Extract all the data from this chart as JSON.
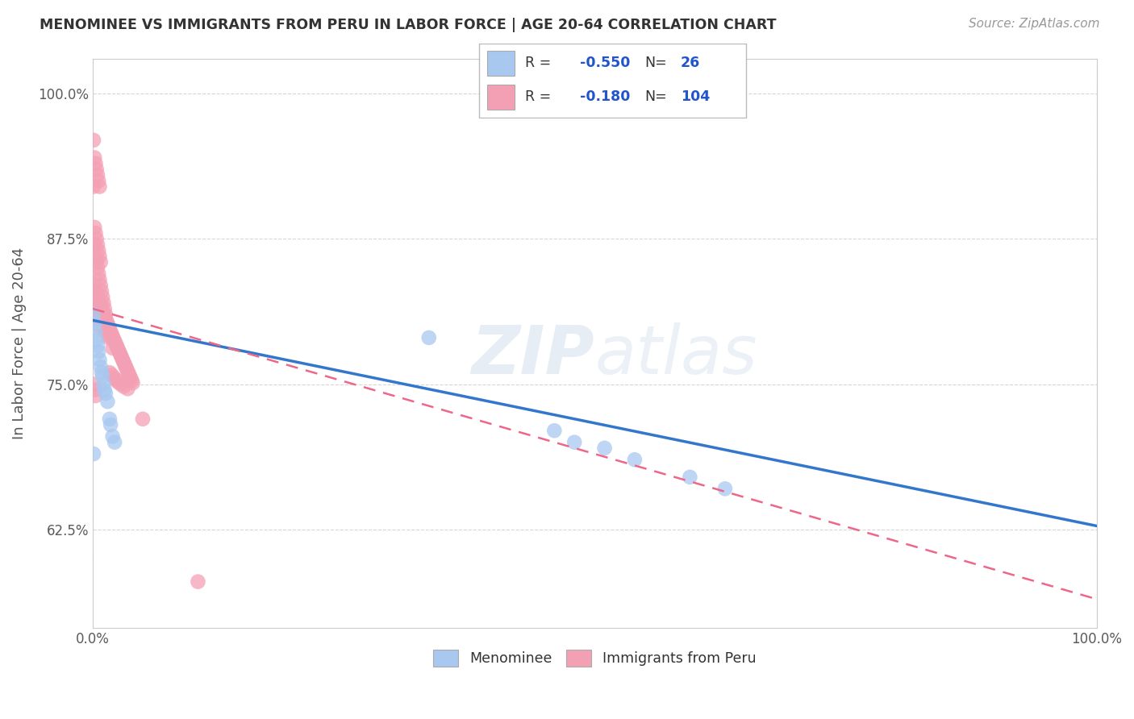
{
  "title": "MENOMINEE VS IMMIGRANTS FROM PERU IN LABOR FORCE | AGE 20-64 CORRELATION CHART",
  "source": "Source: ZipAtlas.com",
  "ylabel": "In Labor Force | Age 20-64",
  "xlim": [
    0.0,
    1.0
  ],
  "ylim": [
    0.54,
    1.03
  ],
  "yticks": [
    0.625,
    0.75,
    0.875,
    1.0
  ],
  "ytick_labels": [
    "62.5%",
    "75.0%",
    "87.5%",
    "100.0%"
  ],
  "menominee_R": -0.55,
  "menominee_N": 26,
  "peru_R": -0.18,
  "peru_N": 104,
  "menominee_color": "#a8c8f0",
  "peru_color": "#f4a0b4",
  "menominee_line_color": "#3377cc",
  "peru_line_color": "#ee6688",
  "legend_label_1": "Menominee",
  "legend_label_2": "Immigrants from Peru",
  "men_line_x0": 0.0,
  "men_line_y0": 0.805,
  "men_line_x1": 1.0,
  "men_line_y1": 0.628,
  "peru_line_x0": 0.0,
  "peru_line_y0": 0.815,
  "peru_line_x1": 1.0,
  "peru_line_y1": 0.565,
  "menominee_x": [
    0.001,
    0.002,
    0.003,
    0.004,
    0.005,
    0.006,
    0.007,
    0.008,
    0.009,
    0.01,
    0.011,
    0.012,
    0.013,
    0.015,
    0.017,
    0.018,
    0.02,
    0.022,
    0.335,
    0.46,
    0.48,
    0.51,
    0.54,
    0.595,
    0.63,
    0.001
  ],
  "menominee_y": [
    0.81,
    0.802,
    0.795,
    0.788,
    0.783,
    0.778,
    0.771,
    0.765,
    0.76,
    0.757,
    0.75,
    0.745,
    0.742,
    0.735,
    0.72,
    0.715,
    0.705,
    0.7,
    0.79,
    0.71,
    0.7,
    0.695,
    0.685,
    0.67,
    0.66,
    0.69
  ],
  "peru_x": [
    0.001,
    0.001,
    0.001,
    0.002,
    0.002,
    0.002,
    0.003,
    0.003,
    0.003,
    0.004,
    0.004,
    0.004,
    0.005,
    0.005,
    0.005,
    0.006,
    0.006,
    0.006,
    0.007,
    0.007,
    0.008,
    0.008,
    0.008,
    0.009,
    0.009,
    0.01,
    0.01,
    0.011,
    0.011,
    0.012,
    0.012,
    0.013,
    0.013,
    0.014,
    0.014,
    0.015,
    0.015,
    0.016,
    0.016,
    0.017,
    0.018,
    0.019,
    0.02,
    0.02,
    0.021,
    0.022,
    0.023,
    0.024,
    0.025,
    0.026,
    0.027,
    0.028,
    0.029,
    0.03,
    0.031,
    0.032,
    0.033,
    0.034,
    0.035,
    0.036,
    0.037,
    0.038,
    0.039,
    0.04,
    0.002,
    0.003,
    0.004,
    0.005,
    0.006,
    0.007,
    0.008,
    0.009,
    0.01,
    0.011,
    0.012,
    0.013,
    0.001,
    0.002,
    0.003,
    0.004,
    0.005,
    0.006,
    0.007,
    0.008,
    0.001,
    0.002,
    0.003,
    0.004,
    0.005,
    0.006,
    0.007,
    0.001,
    0.002,
    0.003,
    0.017,
    0.019,
    0.021,
    0.023,
    0.025,
    0.028,
    0.031,
    0.035,
    0.05,
    0.105
  ],
  "peru_y": [
    0.83,
    0.82,
    0.81,
    0.835,
    0.825,
    0.815,
    0.83,
    0.82,
    0.81,
    0.828,
    0.818,
    0.808,
    0.825,
    0.815,
    0.805,
    0.822,
    0.812,
    0.802,
    0.82,
    0.81,
    0.818,
    0.808,
    0.798,
    0.815,
    0.805,
    0.812,
    0.802,
    0.81,
    0.8,
    0.808,
    0.798,
    0.806,
    0.796,
    0.804,
    0.794,
    0.802,
    0.792,
    0.8,
    0.79,
    0.798,
    0.795,
    0.793,
    0.791,
    0.781,
    0.789,
    0.787,
    0.785,
    0.783,
    0.781,
    0.779,
    0.777,
    0.775,
    0.773,
    0.771,
    0.769,
    0.767,
    0.765,
    0.763,
    0.761,
    0.759,
    0.757,
    0.755,
    0.753,
    0.751,
    0.87,
    0.86,
    0.855,
    0.85,
    0.845,
    0.84,
    0.835,
    0.83,
    0.825,
    0.82,
    0.815,
    0.81,
    0.92,
    0.885,
    0.88,
    0.875,
    0.87,
    0.865,
    0.86,
    0.855,
    0.96,
    0.945,
    0.94,
    0.935,
    0.93,
    0.925,
    0.92,
    0.75,
    0.745,
    0.74,
    0.76,
    0.758,
    0.756,
    0.754,
    0.752,
    0.75,
    0.748,
    0.746,
    0.72,
    0.58
  ]
}
